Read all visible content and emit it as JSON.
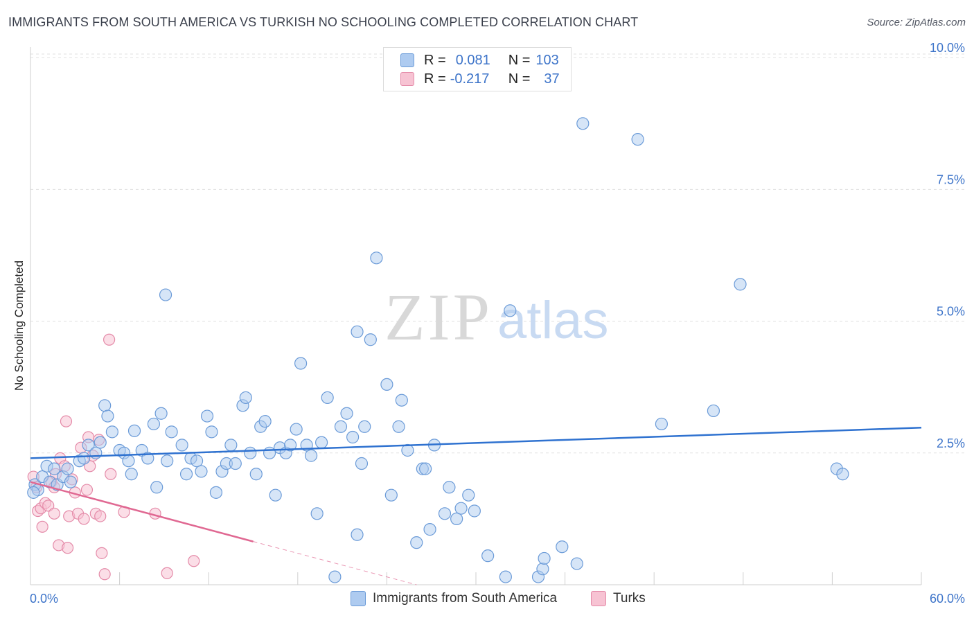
{
  "header": {
    "title": "IMMIGRANTS FROM SOUTH AMERICA VS TURKISH NO SCHOOLING COMPLETED CORRELATION CHART",
    "source": "Source: ZipAtlas.com"
  },
  "legend": {
    "series1": {
      "r_label": "R =",
      "r_value": "0.081",
      "n_label": "N =",
      "n_value": "103"
    },
    "series2": {
      "r_label": "R =",
      "r_value": "-0.217",
      "n_label": "N =",
      "n_value": "37"
    }
  },
  "bottom_legend": {
    "series1": "Immigrants from South America",
    "series2": "Turks"
  },
  "watermark": {
    "zip": "ZIP",
    "atlas": "atlas"
  },
  "colors": {
    "blue_fill": "#aecbf0",
    "blue_stroke": "#6b9bd8",
    "blue_line": "#2f72d0",
    "pink_fill": "#f7c3d3",
    "pink_stroke": "#e48aa8",
    "pink_line": "#e06892",
    "axis_text": "#3d74c9"
  },
  "chart_data": {
    "type": "scatter",
    "title": "IMMIGRANTS FROM SOUTH AMERICA VS TURKISH NO SCHOOLING COMPLETED CORRELATION CHART",
    "xlabel": "",
    "ylabel": "No Schooling Completed",
    "xlim": [
      0,
      60
    ],
    "ylim": [
      0,
      10.2
    ],
    "x_tick_labels": [
      "0.0%",
      "60.0%"
    ],
    "y_ticks": [
      2.5,
      5.0,
      7.5,
      10.0
    ],
    "y_tick_labels": [
      "2.5%",
      "5.0%",
      "7.5%",
      "10.0%"
    ],
    "grid": true,
    "series": [
      {
        "name": "Immigrants from South America",
        "color": "#6b9bd8",
        "trend": {
          "x": [
            0,
            60
          ],
          "y": [
            2.4,
            2.98
          ]
        },
        "points": [
          [
            0.3,
            1.9
          ],
          [
            0.5,
            1.8
          ],
          [
            0.8,
            2.05
          ],
          [
            1.1,
            2.25
          ],
          [
            1.3,
            1.95
          ],
          [
            1.6,
            2.2
          ],
          [
            1.8,
            1.9
          ],
          [
            2.2,
            2.05
          ],
          [
            2.5,
            2.2
          ],
          [
            2.7,
            1.95
          ],
          [
            3.3,
            2.35
          ],
          [
            3.6,
            2.4
          ],
          [
            3.9,
            2.65
          ],
          [
            4.4,
            2.5
          ],
          [
            4.7,
            2.7
          ],
          [
            5.0,
            3.4
          ],
          [
            5.2,
            3.2
          ],
          [
            5.5,
            2.9
          ],
          [
            6.0,
            2.55
          ],
          [
            6.3,
            2.5
          ],
          [
            6.6,
            2.35
          ],
          [
            6.8,
            2.1
          ],
          [
            7.0,
            2.92
          ],
          [
            7.5,
            2.55
          ],
          [
            7.9,
            2.4
          ],
          [
            8.3,
            3.05
          ],
          [
            8.5,
            1.85
          ],
          [
            8.8,
            3.25
          ],
          [
            9.2,
            2.35
          ],
          [
            9.5,
            2.9
          ],
          [
            9.1,
            5.5
          ],
          [
            10.2,
            2.65
          ],
          [
            10.5,
            2.1
          ],
          [
            10.8,
            2.4
          ],
          [
            11.2,
            2.35
          ],
          [
            11.5,
            2.15
          ],
          [
            11.9,
            3.2
          ],
          [
            12.2,
            2.9
          ],
          [
            12.5,
            1.75
          ],
          [
            12.9,
            2.15
          ],
          [
            13.2,
            2.3
          ],
          [
            13.5,
            2.65
          ],
          [
            13.8,
            2.3
          ],
          [
            14.3,
            3.4
          ],
          [
            14.5,
            3.55
          ],
          [
            14.8,
            2.5
          ],
          [
            15.2,
            2.1
          ],
          [
            15.5,
            3.0
          ],
          [
            15.8,
            3.1
          ],
          [
            16.1,
            2.5
          ],
          [
            16.5,
            1.7
          ],
          [
            16.8,
            2.6
          ],
          [
            17.2,
            2.5
          ],
          [
            17.5,
            2.65
          ],
          [
            17.9,
            2.95
          ],
          [
            18.2,
            4.2
          ],
          [
            18.6,
            2.65
          ],
          [
            18.9,
            2.45
          ],
          [
            19.3,
            1.35
          ],
          [
            19.6,
            2.7
          ],
          [
            20.0,
            3.55
          ],
          [
            20.5,
            0.15
          ],
          [
            20.9,
            3.0
          ],
          [
            21.3,
            3.25
          ],
          [
            21.7,
            2.8
          ],
          [
            22.0,
            4.8
          ],
          [
            22.3,
            2.3
          ],
          [
            22.5,
            3.0
          ],
          [
            22.9,
            4.65
          ],
          [
            23.3,
            6.2
          ],
          [
            22.0,
            0.95
          ],
          [
            24.0,
            3.8
          ],
          [
            24.3,
            1.7
          ],
          [
            24.8,
            3.0
          ],
          [
            25.0,
            3.5
          ],
          [
            25.4,
            2.55
          ],
          [
            26.0,
            0.8
          ],
          [
            26.4,
            2.2
          ],
          [
            26.6,
            2.2
          ],
          [
            26.9,
            1.05
          ],
          [
            27.2,
            2.65
          ],
          [
            27.9,
            1.35
          ],
          [
            28.2,
            1.85
          ],
          [
            28.7,
            1.25
          ],
          [
            29.0,
            1.45
          ],
          [
            29.5,
            1.7
          ],
          [
            29.9,
            1.4
          ],
          [
            30.8,
            0.55
          ],
          [
            32.3,
            5.2
          ],
          [
            32.0,
            0.15
          ],
          [
            34.2,
            0.15
          ],
          [
            34.5,
            0.3
          ],
          [
            34.6,
            0.5
          ],
          [
            35.8,
            0.72
          ],
          [
            37.2,
            8.75
          ],
          [
            36.8,
            0.4
          ],
          [
            40.9,
            8.45
          ],
          [
            42.5,
            3.05
          ],
          [
            46.0,
            3.3
          ],
          [
            47.8,
            5.7
          ],
          [
            54.3,
            2.2
          ],
          [
            54.7,
            2.1
          ],
          [
            0.2,
            1.75
          ]
        ]
      },
      {
        "name": "Turks",
        "color": "#e48aa8",
        "trend": {
          "x": [
            0,
            15
          ],
          "y": [
            1.95,
            0.82
          ]
        },
        "trend_dashed": {
          "x": [
            15,
            26
          ],
          "y": [
            0.82,
            0.0
          ]
        },
        "points": [
          [
            0.2,
            2.05
          ],
          [
            0.4,
            1.85
          ],
          [
            0.5,
            1.4
          ],
          [
            0.7,
            1.45
          ],
          [
            0.8,
            1.1
          ],
          [
            1.0,
            1.55
          ],
          [
            1.2,
            1.5
          ],
          [
            1.4,
            1.95
          ],
          [
            1.6,
            1.85
          ],
          [
            1.7,
            2.1
          ],
          [
            1.6,
            1.35
          ],
          [
            1.9,
            0.75
          ],
          [
            2.0,
            2.4
          ],
          [
            2.3,
            2.25
          ],
          [
            2.4,
            3.1
          ],
          [
            2.6,
            1.3
          ],
          [
            2.8,
            2.0
          ],
          [
            3.0,
            1.75
          ],
          [
            3.2,
            1.35
          ],
          [
            3.4,
            2.6
          ],
          [
            3.6,
            1.25
          ],
          [
            3.8,
            1.8
          ],
          [
            3.9,
            2.8
          ],
          [
            4.0,
            2.25
          ],
          [
            4.2,
            2.45
          ],
          [
            4.4,
            1.35
          ],
          [
            4.6,
            2.75
          ],
          [
            4.7,
            1.3
          ],
          [
            4.8,
            0.6
          ],
          [
            5.3,
            4.65
          ],
          [
            5.0,
            0.2
          ],
          [
            5.4,
            2.1
          ],
          [
            6.3,
            1.38
          ],
          [
            8.4,
            1.35
          ],
          [
            9.2,
            0.22
          ],
          [
            11.0,
            0.45
          ],
          [
            2.5,
            0.7
          ]
        ]
      }
    ]
  }
}
